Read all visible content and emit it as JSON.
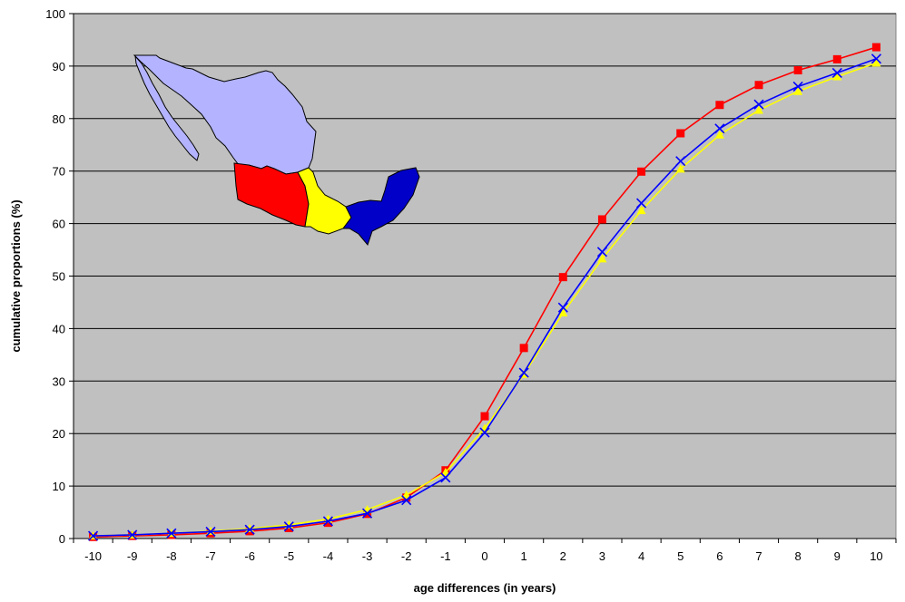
{
  "chart_data": {
    "type": "line",
    "title": "",
    "xlabel": "age differences  (in years)",
    "ylabel": "cumulative proportions (%)",
    "categories": [
      "-10",
      "-9",
      "-8",
      "-7",
      "-6",
      "-5",
      "-4",
      "-3",
      "-2",
      "-1",
      "0",
      "1",
      "2",
      "3",
      "4",
      "5",
      "6",
      "7",
      "8",
      "9",
      "10"
    ],
    "ylim": [
      0,
      100
    ],
    "yticks": [
      0,
      10,
      20,
      30,
      40,
      50,
      60,
      70,
      80,
      90,
      100
    ],
    "grid": true,
    "plot_background": "#c0c0c0",
    "series": [
      {
        "color": "#ff0000",
        "marker": "square",
        "values": [
          0.3,
          0.5,
          0.7,
          1.0,
          1.4,
          2.0,
          3.0,
          4.7,
          7.8,
          13.0,
          23.3,
          36.3,
          49.8,
          60.8,
          69.9,
          77.2,
          82.6,
          86.4,
          89.2,
          91.3,
          93.6
        ]
      },
      {
        "color": "#ffff00",
        "marker": "triangle",
        "values": [
          0.5,
          0.7,
          1.0,
          1.4,
          1.9,
          2.6,
          3.7,
          5.5,
          8.3,
          12.6,
          21.0,
          31.3,
          43.0,
          53.3,
          62.5,
          70.4,
          76.9,
          81.6,
          85.2,
          88.0,
          90.6
        ]
      },
      {
        "color": "#0000ff",
        "marker": "x",
        "values": [
          0.5,
          0.7,
          1.0,
          1.3,
          1.7,
          2.3,
          3.3,
          4.8,
          7.3,
          11.6,
          20.2,
          31.6,
          44.0,
          54.6,
          63.9,
          71.9,
          78.1,
          82.7,
          86.1,
          88.7,
          91.4
        ]
      }
    ]
  },
  "map_inset": {
    "description_colors": {
      "north": "#b3b3ff",
      "west": "#ff0000",
      "central": "#ffff00",
      "southeast": "#0000c8"
    }
  }
}
